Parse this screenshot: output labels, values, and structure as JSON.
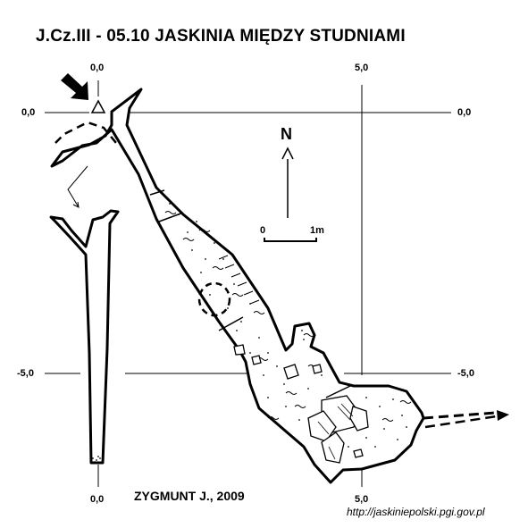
{
  "title": "J.Cz.III - 05.10   JASKINIA MIĘDZY STUDNIAMI",
  "author": "ZYGMUNT J., 2009",
  "source": "http://jaskiniepolski.pgi.gov.pl",
  "north_label": "N",
  "scale": {
    "start": "0",
    "end": "1m"
  },
  "grid_labels": {
    "top_left_x": "0,0",
    "top_right_x": "5,0",
    "bottom_left_x": "0,0",
    "bottom_right_x": "5,0",
    "left_upper_y": "0,0",
    "right_upper_y": "0,0",
    "left_lower_y": "-5,0",
    "right_lower_y": "-5,0"
  },
  "colors": {
    "ink": "#000000",
    "background": "#ffffff"
  }
}
